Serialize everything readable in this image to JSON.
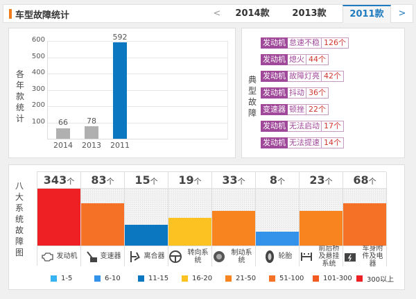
{
  "header": {
    "title": "车型故障统计",
    "prev": "<",
    "next": ">",
    "tabs": [
      {
        "label": "2014款"
      },
      {
        "label": "2013款"
      },
      {
        "label": "2011款",
        "active": true
      }
    ]
  },
  "year_chart": {
    "vlabel": [
      "各",
      "年",
      "款",
      "统",
      "计"
    ],
    "yticks": [
      "600",
      "500",
      "400",
      "300",
      "200",
      "100"
    ],
    "ymax": 600,
    "bars": [
      {
        "year": "2014",
        "value": 66,
        "label": "66",
        "color": "#b0b0b0"
      },
      {
        "year": "2013",
        "value": 78,
        "label": "78",
        "color": "#b0b0b0"
      },
      {
        "year": "2011",
        "value": 592,
        "label": "592",
        "color": "#0a77c0"
      }
    ]
  },
  "typical": {
    "vlabel": [
      "典",
      "型",
      "故",
      "障"
    ],
    "items": [
      {
        "system": "发动机",
        "fault": "怠速不稳",
        "count": "126个"
      },
      {
        "system": "发动机",
        "fault": "熄火",
        "count": "44个"
      },
      {
        "system": "发动机",
        "fault": "故障灯亮",
        "count": "42个"
      },
      {
        "system": "发动机",
        "fault": "抖动",
        "count": "36个"
      },
      {
        "system": "变速器",
        "fault": "顿挫",
        "count": "22个"
      },
      {
        "system": "发动机",
        "fault": "无法启动",
        "count": "17个"
      },
      {
        "system": "发动机",
        "fault": "无法提速",
        "count": "14个"
      }
    ]
  },
  "systems": {
    "vlabel": [
      "八",
      "大",
      "系",
      "统",
      "故",
      "障",
      "图"
    ],
    "unit": "个",
    "items": [
      {
        "name": "发动机",
        "count": "343",
        "level": 1.0,
        "color": "#ee2024",
        "icon": "engine-icon"
      },
      {
        "name": "变速器",
        "count": "83",
        "level": 0.74,
        "color": "#f47126",
        "icon": "gear-shift-icon"
      },
      {
        "name": "离合器",
        "count": "15",
        "level": 0.37,
        "color": "#0a77c0",
        "icon": "clutch-icon"
      },
      {
        "name": "转向系统",
        "count": "19",
        "level": 0.49,
        "color": "#fcc221",
        "icon": "steering-wheel-icon"
      },
      {
        "name": "制动系统",
        "count": "33",
        "level": 0.61,
        "color": "#f7841f",
        "icon": "brake-disc-icon"
      },
      {
        "name": "轮胎",
        "count": "8",
        "level": 0.24,
        "color": "#3393ea",
        "icon": "tire-icon"
      },
      {
        "name": "前后桥及悬挂系统",
        "count": "23",
        "level": 0.61,
        "color": "#f7841f",
        "icon": "suspension-icon"
      },
      {
        "name": "车身附件及电器",
        "count": "68",
        "level": 0.74,
        "color": "#f47126",
        "icon": "battery-icon"
      }
    ]
  },
  "legend": [
    {
      "label": "1-5",
      "color": "#38b3f2"
    },
    {
      "label": "6-10",
      "color": "#3393ea"
    },
    {
      "label": "11-15",
      "color": "#0a77c0"
    },
    {
      "label": "16-20",
      "color": "#fcc221"
    },
    {
      "label": "21-50",
      "color": "#f7841f"
    },
    {
      "label": "51-100",
      "color": "#f47126"
    },
    {
      "label": "101-300",
      "color": "#f35a1f"
    },
    {
      "label": "300以上",
      "color": "#ee2024"
    }
  ]
}
